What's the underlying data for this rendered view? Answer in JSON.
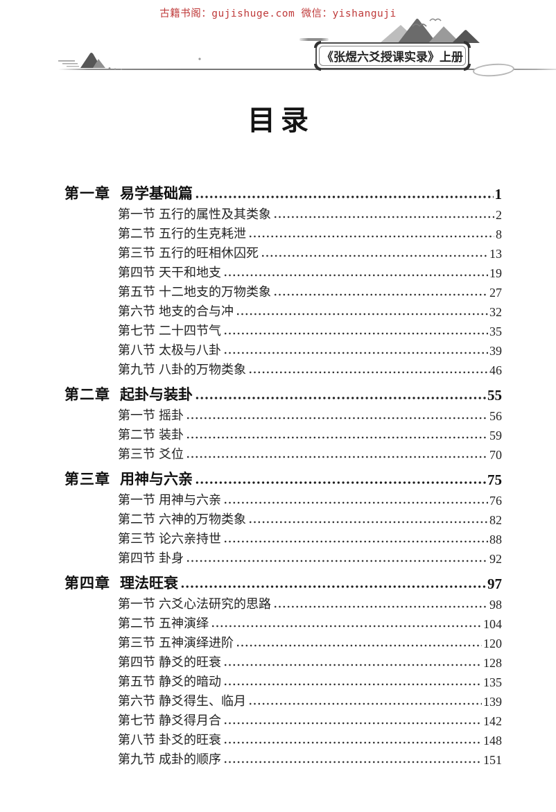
{
  "watermark": {
    "text": "古籍书阁：gujishuge.com 微信：yishanguji",
    "color": "#bf3a3a"
  },
  "header": {
    "banner_title": "《张煜六爻授课实录》上册"
  },
  "page_title": "目录",
  "toc": {
    "chapters": [
      {
        "label": "第一章",
        "title": "易学基础篇",
        "page": "1",
        "sections": [
          {
            "label": "第一节",
            "title": "五行的属性及其类象",
            "page": "2"
          },
          {
            "label": "第二节",
            "title": "五行的生克耗泄",
            "page": "8"
          },
          {
            "label": "第三节",
            "title": "五行的旺相休囚死",
            "page": "13"
          },
          {
            "label": "第四节",
            "title": "天干和地支",
            "page": "19"
          },
          {
            "label": "第五节",
            "title": "十二地支的万物类象",
            "page": "27"
          },
          {
            "label": "第六节",
            "title": "地支的合与冲",
            "page": "32"
          },
          {
            "label": "第七节",
            "title": "二十四节气",
            "page": "35"
          },
          {
            "label": "第八节",
            "title": "太极与八卦",
            "page": "39"
          },
          {
            "label": "第九节",
            "title": "八卦的万物类象",
            "page": "46"
          }
        ]
      },
      {
        "label": "第二章",
        "title": "起卦与装卦",
        "page": "55",
        "sections": [
          {
            "label": "第一节",
            "title": "摇卦",
            "page": "56"
          },
          {
            "label": "第二节",
            "title": "装卦",
            "page": "59"
          },
          {
            "label": "第三节",
            "title": "爻位",
            "page": "70"
          }
        ]
      },
      {
        "label": "第三章",
        "title": "用神与六亲",
        "page": "75",
        "sections": [
          {
            "label": "第一节",
            "title": "用神与六亲",
            "page": "76"
          },
          {
            "label": "第二节",
            "title": "六神的万物类象",
            "page": "82"
          },
          {
            "label": "第三节",
            "title": "论六亲持世",
            "page": "88"
          },
          {
            "label": "第四节",
            "title": "卦身",
            "page": "92"
          }
        ]
      },
      {
        "label": "第四章",
        "title": "理法旺衰",
        "page": "97",
        "sections": [
          {
            "label": "第一节",
            "title": "六爻心法研究的思路",
            "page": "98"
          },
          {
            "label": "第二节",
            "title": "五神演绎",
            "page": "104"
          },
          {
            "label": "第三节",
            "title": "五神演绎进阶",
            "page": "120"
          },
          {
            "label": "第四节",
            "title": "静爻的旺衰",
            "page": "128"
          },
          {
            "label": "第五节",
            "title": "静爻的暗动",
            "page": "135"
          },
          {
            "label": "第六节",
            "title": "静爻得生、临月",
            "page": "139"
          },
          {
            "label": "第七节",
            "title": "静爻得月合",
            "page": "142"
          },
          {
            "label": "第八节",
            "title": "卦爻的旺衰",
            "page": "148"
          },
          {
            "label": "第九节",
            "title": "成卦的顺序",
            "page": "151"
          }
        ]
      }
    ]
  }
}
